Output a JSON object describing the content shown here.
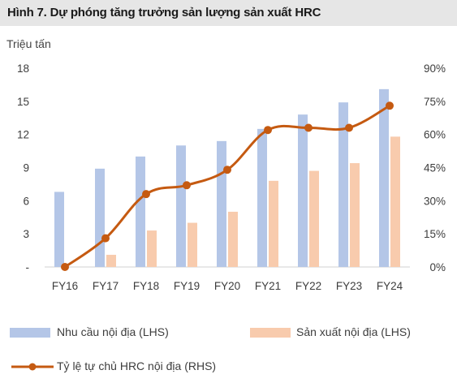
{
  "title": "Hình 7. Dự phóng tăng trưởng sản lượng sản xuất HRC",
  "chart_data": {
    "type": "bar",
    "title": "Hình 7. Dự phóng tăng trưởng sản lượng sản xuất HRC",
    "ylabel_left": "Triệu tấn",
    "categories": [
      "FY16",
      "FY17",
      "FY18",
      "FY19",
      "FY20",
      "FY21",
      "FY22",
      "FY23",
      "FY24"
    ],
    "left_axis": {
      "range": [
        0,
        18
      ],
      "ticks": [
        "-",
        "3",
        "6",
        "9",
        "12",
        "15",
        "18"
      ],
      "tick_values": [
        0,
        3,
        6,
        9,
        12,
        15,
        18
      ]
    },
    "right_axis": {
      "range": [
        0,
        90
      ],
      "ticks": [
        "0%",
        "15%",
        "30%",
        "45%",
        "60%",
        "75%",
        "90%"
      ],
      "tick_values": [
        0,
        15,
        30,
        45,
        60,
        75,
        90
      ]
    },
    "series": [
      {
        "name": "Nhu cầu nội địa (LHS)",
        "type": "bar",
        "axis": "left",
        "color": "#b4c6e7",
        "values": [
          6.8,
          8.9,
          10.0,
          11.0,
          11.4,
          12.5,
          13.8,
          14.9,
          16.1
        ]
      },
      {
        "name": "Sản xuất nội địa (LHS)",
        "type": "bar",
        "axis": "left",
        "color": "#f8cbad",
        "values": [
          0.0,
          1.1,
          3.3,
          4.0,
          5.0,
          7.8,
          8.7,
          9.4,
          11.8
        ]
      },
      {
        "name": "Tỷ lệ tự chủ HRC nội địa (RHS)",
        "type": "line",
        "axis": "right",
        "color": "#c55a11",
        "values": [
          0,
          13,
          33,
          37,
          44,
          62,
          63,
          63,
          73
        ]
      }
    ],
    "grid": false,
    "legend_position": "bottom"
  }
}
